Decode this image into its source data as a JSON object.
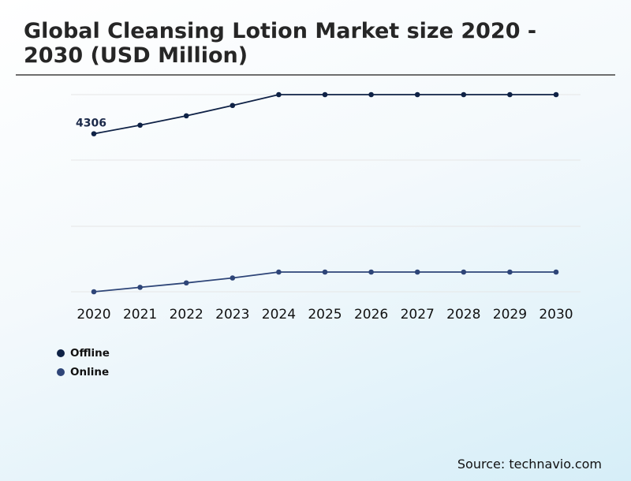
{
  "title": "Global Cleansing Lotion Market size 2020 - 2030 (USD Million)",
  "source": "Source: technavio.com",
  "colors": {
    "offline": "#0f2246",
    "online": "#2e4578",
    "grid": "#e6e6e6"
  },
  "chart_data": {
    "type": "line",
    "title": "Global Cleansing Lotion Market size 2020 - 2030 (USD Million)",
    "x": [
      "2020",
      "2021",
      "2022",
      "2023",
      "2024",
      "2025",
      "2026",
      "2027",
      "2028",
      "2029",
      "2030"
    ],
    "series": [
      {
        "name": "Offline",
        "values": [
          4306,
          4480,
          4670,
          4880,
          5100,
          5100,
          5100,
          5100,
          5100,
          5100,
          5100
        ],
        "point_labels": [
          "4306",
          "",
          "",
          "",
          "",
          "",
          "",
          "",
          "",
          "",
          ""
        ]
      },
      {
        "name": "Online",
        "values": [
          1100,
          1190,
          1280,
          1380,
          1500,
          1500,
          1500,
          1500,
          1500,
          1500,
          1500
        ]
      }
    ],
    "ylim": [
      1100,
      5100
    ],
    "grid": true,
    "legend": "bottom-left",
    "xlabel": "",
    "ylabel": ""
  },
  "legend": {
    "items": [
      {
        "label": "Offline"
      },
      {
        "label": "Online"
      }
    ]
  }
}
